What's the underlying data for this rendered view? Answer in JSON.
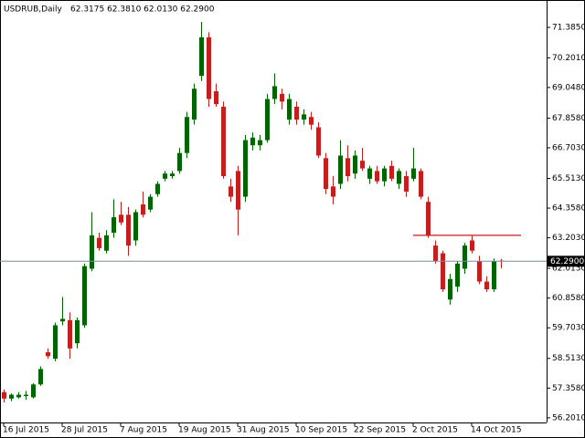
{
  "chart_data": {
    "type": "candlestick",
    "title": "USDRUB,Daily",
    "subtitle": "62.3175 62.3810 62.0130 62.2900",
    "categories": [
      "16 Jul 2015",
      null,
      null,
      null,
      null,
      null,
      null,
      null,
      "28 Jul 2015",
      null,
      null,
      null,
      null,
      null,
      null,
      null,
      "7 Aug 2015",
      null,
      null,
      null,
      null,
      null,
      null,
      null,
      "19 Aug 2015",
      null,
      null,
      null,
      null,
      null,
      null,
      null,
      "31 Aug 2015",
      null,
      null,
      null,
      null,
      null,
      null,
      null,
      "10 Sep 2015",
      null,
      null,
      null,
      null,
      null,
      null,
      null,
      "22 Sep 2015",
      null,
      null,
      null,
      null,
      null,
      null,
      null,
      "2 Oct 2015",
      null,
      null,
      null,
      null,
      null,
      null,
      null,
      "14 Oct 2015",
      null,
      null,
      null,
      null
    ],
    "open": [
      57.2,
      56.95,
      57.0,
      57.05,
      57.0,
      57.5,
      58.75,
      58.5,
      59.95,
      60.0,
      59.1,
      59.8,
      62.0,
      63.2,
      62.7,
      63.4,
      64.1,
      64.1,
      63.1,
      64.5,
      64.3,
      64.9,
      65.5,
      65.6,
      65.8,
      66.5,
      67.8,
      69.5,
      71.0,
      68.9,
      68.3,
      65.2,
      65.8,
      64.8,
      66.8,
      66.8,
      67.0,
      68.6,
      68.8,
      67.8,
      68.3,
      67.8,
      67.9,
      67.5,
      66.3,
      65.2,
      65.3,
      66.3,
      65.7,
      66.2,
      65.5,
      65.8,
      65.4,
      66.0,
      65.3,
      65.6,
      65.5,
      65.8,
      64.6,
      62.9,
      62.6,
      60.8,
      61.3,
      62.0,
      63.1,
      62.3,
      61.5,
      61.2,
      62.3175
    ],
    "high": [
      57.3,
      57.15,
      57.2,
      57.25,
      57.55,
      58.2,
      58.9,
      59.9,
      60.9,
      60.3,
      60.1,
      62.2,
      64.2,
      63.4,
      63.5,
      64.7,
      64.6,
      64.4,
      64.3,
      65.0,
      64.9,
      65.4,
      65.8,
      65.8,
      66.7,
      68.1,
      69.2,
      71.6,
      71.2,
      69.2,
      68.5,
      65.5,
      66.0,
      67.2,
      67.3,
      67.2,
      68.8,
      69.6,
      69.0,
      68.8,
      68.5,
      68.2,
      68.1,
      67.7,
      66.5,
      65.6,
      67.0,
      66.8,
      66.6,
      66.7,
      66.0,
      66.0,
      66.0,
      66.2,
      65.9,
      65.8,
      66.7,
      65.9,
      64.8,
      63.1,
      62.7,
      61.8,
      62.3,
      63.0,
      63.3,
      62.5,
      61.7,
      62.4,
      62.381
    ],
    "low": [
      56.8,
      56.85,
      56.95,
      56.9,
      56.95,
      57.45,
      58.5,
      58.4,
      59.8,
      58.5,
      58.9,
      59.7,
      61.9,
      62.7,
      62.6,
      63.2,
      63.7,
      62.5,
      62.9,
      64.0,
      64.2,
      64.8,
      65.4,
      65.5,
      65.7,
      66.3,
      67.6,
      69.3,
      68.3,
      68.3,
      65.5,
      64.6,
      63.3,
      64.6,
      66.6,
      66.6,
      66.9,
      68.4,
      68.2,
      67.6,
      67.6,
      67.6,
      67.4,
      66.3,
      64.9,
      64.5,
      65.1,
      65.4,
      65.5,
      65.8,
      65.3,
      65.3,
      65.2,
      65.4,
      65.1,
      64.8,
      65.4,
      64.7,
      63.2,
      62.2,
      61.1,
      60.6,
      61.1,
      61.8,
      62.6,
      61.4,
      61.1,
      61.1,
      62.013
    ],
    "close": [
      56.95,
      57.1,
      57.1,
      57.1,
      57.5,
      58.1,
      58.6,
      59.8,
      60.05,
      58.9,
      60.0,
      62.1,
      63.3,
      62.8,
      63.3,
      64.0,
      63.8,
      62.9,
      64.2,
      64.1,
      64.8,
      65.3,
      65.7,
      65.7,
      66.5,
      67.9,
      69.0,
      71.0,
      68.6,
      68.4,
      65.6,
      64.8,
      64.3,
      67.0,
      67.1,
      67.0,
      68.6,
      69.1,
      68.5,
      68.6,
      67.8,
      68.0,
      67.6,
      66.4,
      65.1,
      64.8,
      66.4,
      65.6,
      66.4,
      65.9,
      65.9,
      65.4,
      65.9,
      65.5,
      65.8,
      65.0,
      65.9,
      64.8,
      63.3,
      62.3,
      61.2,
      61.6,
      62.2,
      62.9,
      62.7,
      61.5,
      61.2,
      62.3,
      62.29
    ],
    "up_color": "#006400",
    "down_color": "#c41e1e",
    "ylim": [
      56.02,
      72.45
    ],
    "yticks": [
      {
        "value": 71.385,
        "label": "71.3850"
      },
      {
        "value": 70.201,
        "label": "70.2010"
      },
      {
        "value": 69.048,
        "label": "69.0480"
      },
      {
        "value": 67.858,
        "label": "67.8580"
      },
      {
        "value": 66.703,
        "label": "66.7030"
      },
      {
        "value": 65.513,
        "label": "65.5130"
      },
      {
        "value": 64.358,
        "label": "64.3580"
      },
      {
        "value": 63.203,
        "label": "63.2030"
      },
      {
        "value": 62.013,
        "label": "62.0130"
      },
      {
        "value": 60.858,
        "label": "60.8580"
      },
      {
        "value": 59.703,
        "label": "59.7030"
      },
      {
        "value": 58.513,
        "label": "58.5130"
      },
      {
        "value": 57.358,
        "label": "57.3580"
      },
      {
        "value": 56.201,
        "label": "56.2010"
      }
    ],
    "current_price": {
      "value": 62.29,
      "label": "62.2900"
    },
    "level_line": {
      "value": 63.3,
      "color": "#c41e1e"
    }
  }
}
